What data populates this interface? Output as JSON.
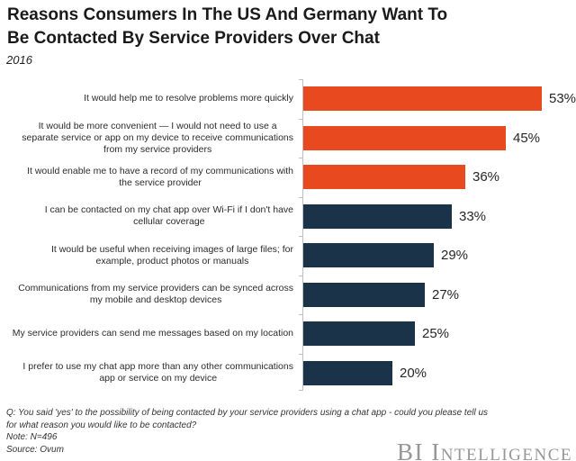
{
  "header": {
    "title": "Reasons Consumers In The US And Germany Want To\nBe Contacted By Service Providers Over Chat",
    "subtitle": "2016"
  },
  "chart_data": {
    "type": "bar",
    "orientation": "horizontal",
    "title": "Reasons Consumers In The US And Germany Want To Be Contacted By Service Providers Over Chat",
    "subtitle": "2016",
    "unit": "%",
    "categories": [
      "It would help me to resolve problems more quickly",
      "It would be more convenient — I would not need to use a\nseparate service or app on my device to receive communications\nfrom my service providers",
      "It would enable me to have a record of my communications with\nthe service provider",
      "I can be contacted on my chat app over Wi-Fi if I don't have\ncellular coverage",
      "It would be useful when receiving images of large files; for\nexample, product photos or manuals",
      "Communications from my service providers can be synced across\nmy mobile and desktop devices",
      "My service providers can send me messages based on my location",
      "I prefer to use my chat app more than any other communications\napp or service on my device"
    ],
    "values": [
      53,
      45,
      36,
      33,
      29,
      27,
      25,
      20
    ],
    "value_labels": [
      "53%",
      "45%",
      "36%",
      "33%",
      "29%",
      "27%",
      "25%",
      "20%"
    ],
    "colors": {
      "highlight": "#E8491F",
      "default": "#1B3348",
      "axis": "#BFBFBF"
    },
    "highlight_count": 3,
    "xlim": [
      0,
      55
    ],
    "grid": false,
    "legend": false,
    "value_labels_position": "end-of-bar"
  },
  "footer": {
    "question": "Q: You said 'yes' to the possibility of being contacted by your service providers using a chat app - could you please tell us\nfor what reason you would like to be contacted?",
    "note": "Note: N=496",
    "source": "Source: Ovum"
  },
  "branding": {
    "logo": "BI Intelligence",
    "color": "#97979A"
  }
}
